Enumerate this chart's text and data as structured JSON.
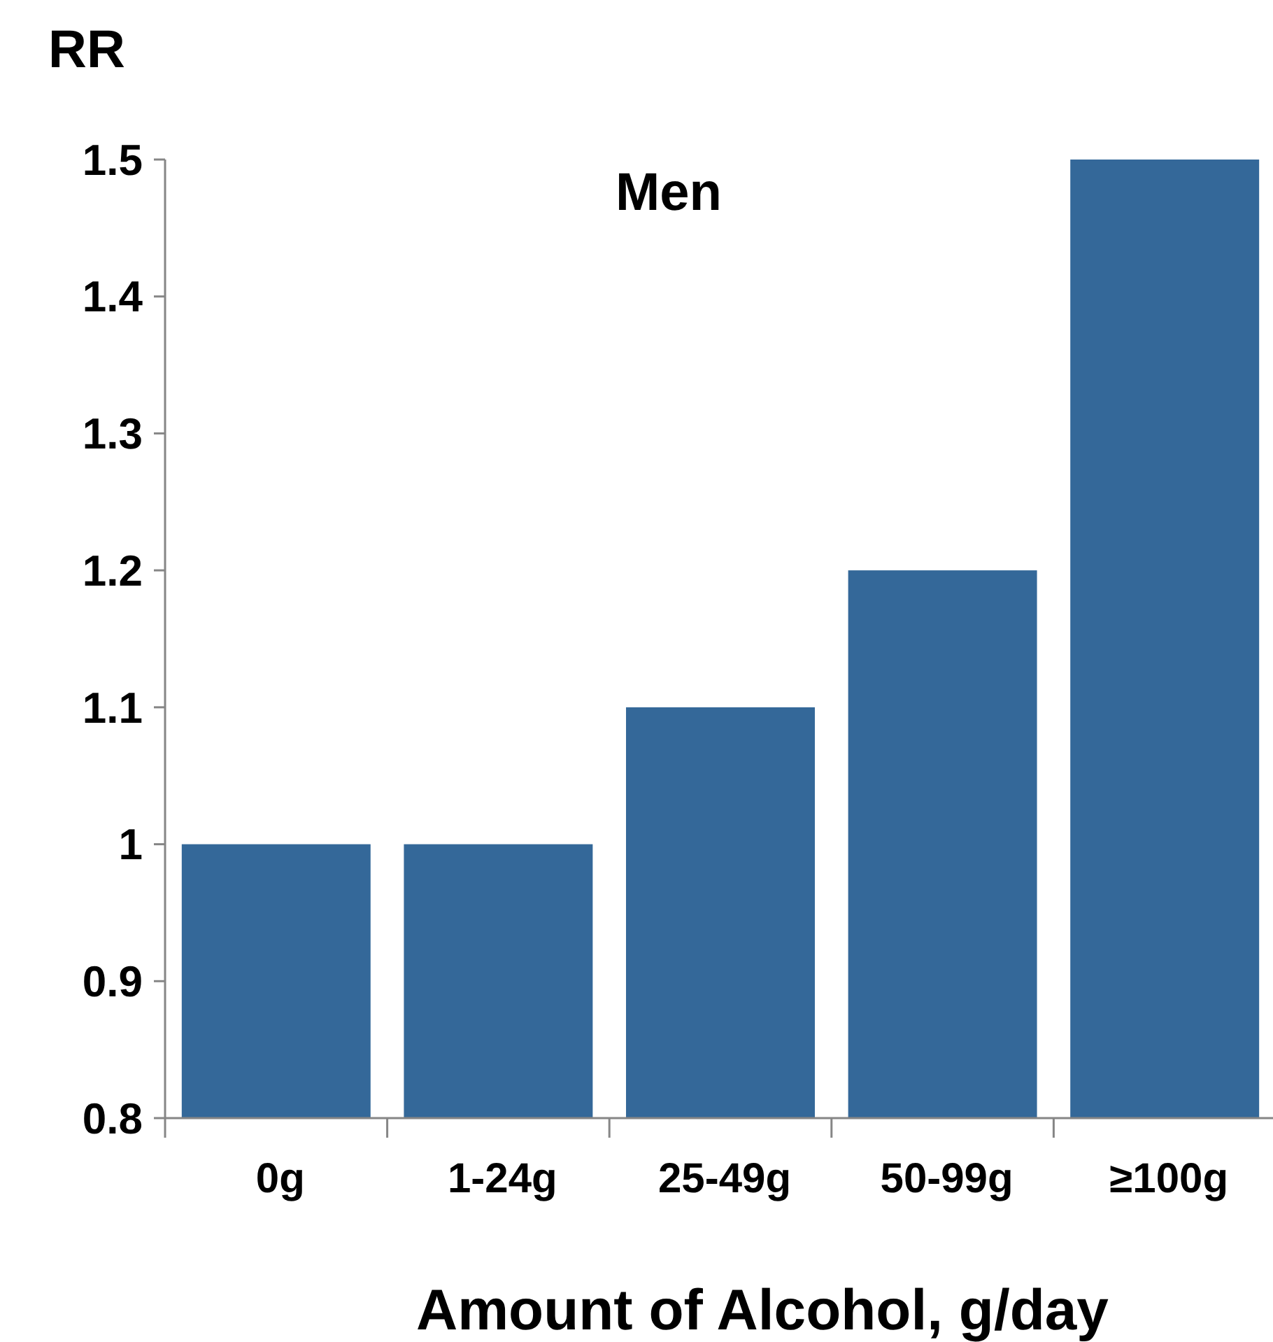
{
  "chart_data": {
    "type": "bar",
    "title": "Men",
    "ylabel": "RR",
    "xlabel": "Amount of Alcohol, g/day",
    "categories": [
      "0g",
      "1-24g",
      "25-49g",
      "50-99g",
      "≥100g"
    ],
    "values": [
      1.0,
      1.0,
      1.1,
      1.2,
      1.5
    ],
    "color": "#346899",
    "ylim": [
      0.8,
      1.5
    ],
    "yticks": [
      {
        "value": 0.8,
        "label": "0.8"
      },
      {
        "value": 0.9,
        "label": "0.9"
      },
      {
        "value": 1,
        "label": "1"
      },
      {
        "value": 1.1,
        "label": "1.1"
      },
      {
        "value": 1.2,
        "label": "1.2"
      },
      {
        "value": 1.3,
        "label": "1.3"
      },
      {
        "value": 1.4,
        "label": "1.4"
      },
      {
        "value": 1.5,
        "label": "1.5"
      }
    ],
    "grid": false
  }
}
